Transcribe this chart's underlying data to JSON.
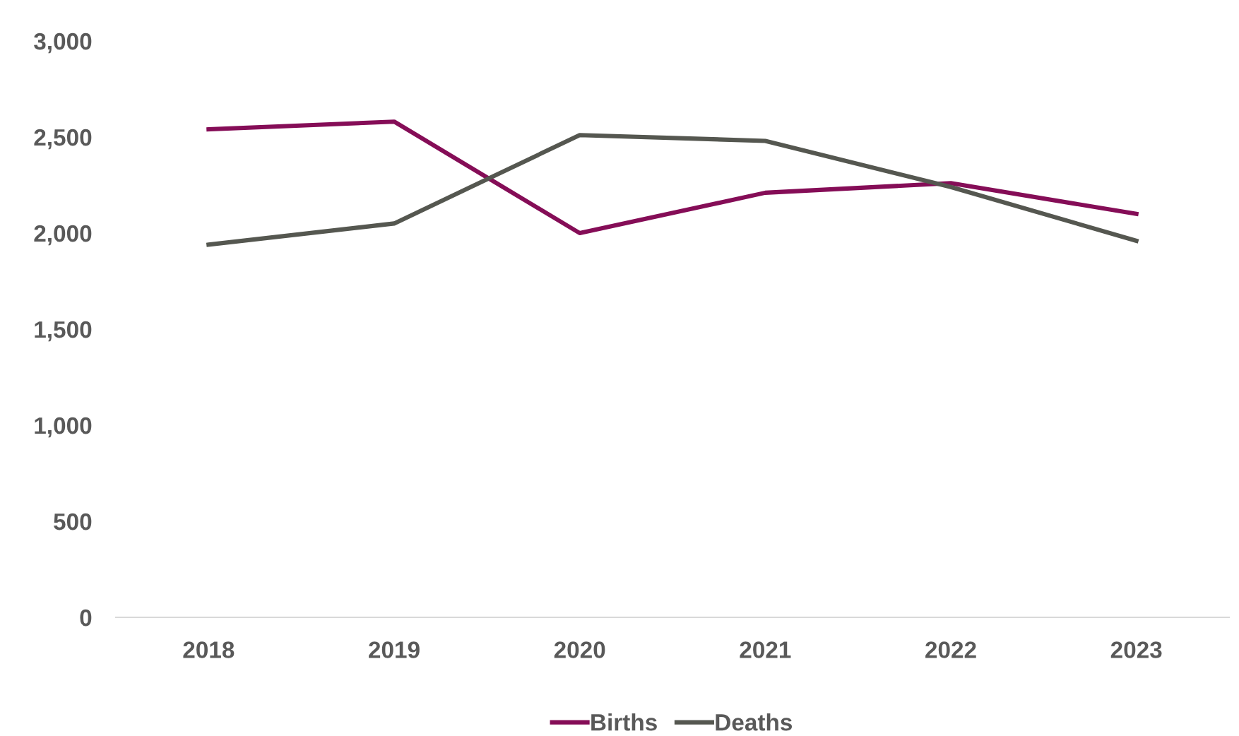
{
  "chart_data": {
    "type": "line",
    "categories": [
      "2018",
      "2019",
      "2020",
      "2021",
      "2022",
      "2023"
    ],
    "series": [
      {
        "name": "Births",
        "color": "#850d57",
        "values": [
          2540,
          2580,
          2000,
          2210,
          2260,
          2100
        ]
      },
      {
        "name": "Deaths",
        "color": "#555750",
        "values": [
          1940,
          2050,
          2510,
          2480,
          2240,
          1960
        ]
      }
    ],
    "ylim": [
      0,
      3000
    ],
    "yticks": [
      {
        "value": 0,
        "label": "0"
      },
      {
        "value": 500,
        "label": "500"
      },
      {
        "value": 1000,
        "label": "1,000"
      },
      {
        "value": 1500,
        "label": "1,500"
      },
      {
        "value": 2000,
        "label": "2,000"
      },
      {
        "value": 2500,
        "label": "2,500"
      },
      {
        "value": 3000,
        "label": "3,000"
      }
    ],
    "grid": false,
    "legend": "bottom",
    "marker": "none",
    "line_style": "solid"
  }
}
